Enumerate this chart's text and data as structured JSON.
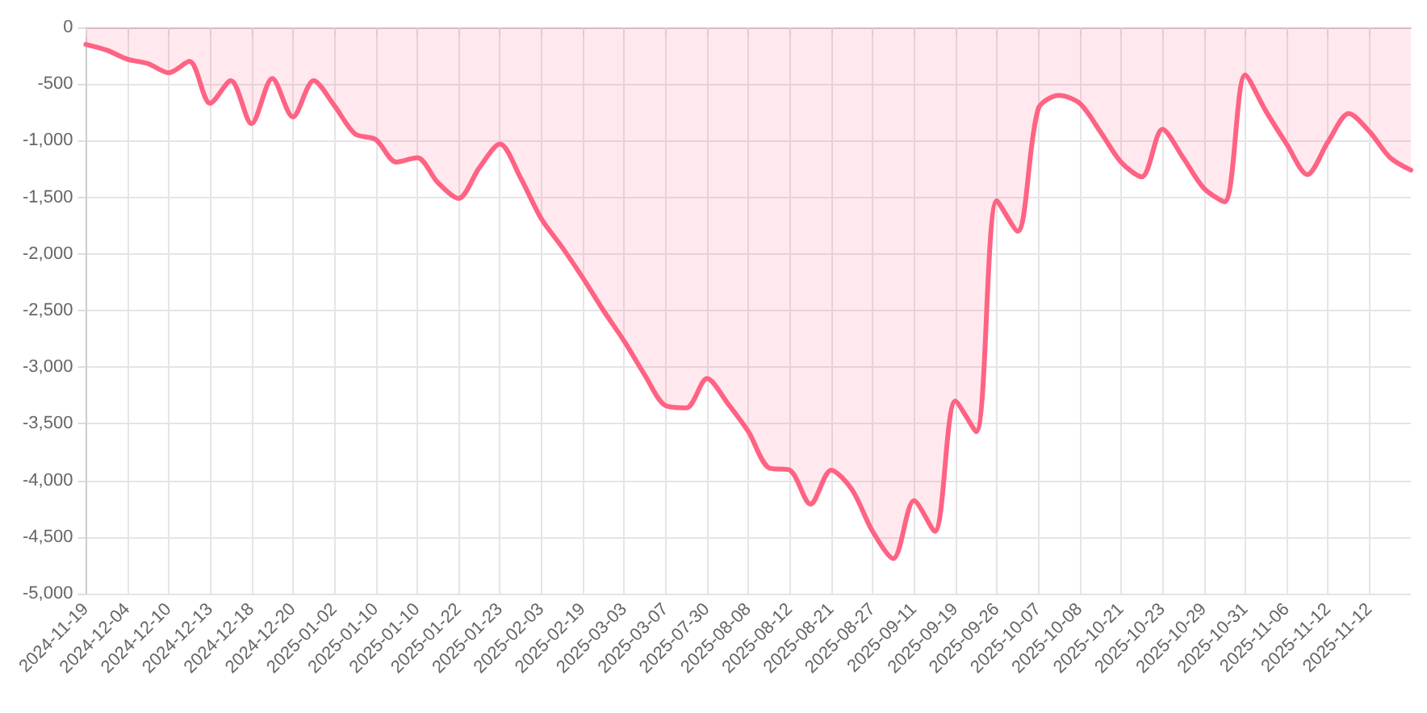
{
  "chart_data": {
    "type": "area",
    "categories": [
      "2024-11-19",
      null,
      "2024-12-04",
      null,
      "2024-12-10",
      null,
      "2024-12-13",
      null,
      "2024-12-18",
      null,
      "2024-12-20",
      null,
      "2025-01-02",
      null,
      "2025-01-10",
      null,
      "2025-01-10",
      null,
      "2025-01-22",
      null,
      "2025-01-23",
      null,
      "2025-02-03",
      null,
      "2025-02-19",
      null,
      "2025-03-03",
      null,
      "2025-03-07",
      null,
      "2025-07-30",
      null,
      "2025-08-08",
      null,
      "2025-08-12",
      null,
      "2025-08-21",
      null,
      "2025-08-27",
      null,
      "2025-09-11",
      null,
      "2025-09-19",
      null,
      "2025-09-26",
      null,
      "2025-10-07",
      null,
      "2025-10-08",
      null,
      "2025-10-21",
      null,
      "2025-10-23",
      null,
      "2025-10-29",
      null,
      "2025-10-31",
      null,
      "2025-11-06",
      null,
      "2025-11-12",
      null,
      "2025-11-12",
      null,
      null
    ],
    "series": [
      {
        "color": "#ff6384",
        "values": [
          -150,
          -200,
          -280,
          -320,
          -400,
          -300,
          -670,
          -470,
          -850,
          -450,
          -790,
          -470,
          -690,
          -940,
          -990,
          -1190,
          -1150,
          -1370,
          -1510,
          -1240,
          -1030,
          -1330,
          -1690,
          -1940,
          -2210,
          -2500,
          -2770,
          -3070,
          -3340,
          -3360,
          -3100,
          -3320,
          -3570,
          -3890,
          -3910,
          -4210,
          -3910,
          -4080,
          -4450,
          -4690,
          -4180,
          -4450,
          -3300,
          -3570,
          -1530,
          -1800,
          -720,
          -600,
          -670,
          -920,
          -1190,
          -1320,
          -900,
          -1150,
          -1420,
          -1540,
          -420,
          -740,
          -1030,
          -1300,
          -1010,
          -760,
          -920,
          -1150,
          -1260
        ]
      }
    ],
    "ylim": [
      -5000,
      0
    ],
    "yticks": [
      {
        "value": -5000,
        "label": "-5,000"
      },
      {
        "value": -4500,
        "label": "-4,500"
      },
      {
        "value": -4000,
        "label": "-4,000"
      },
      {
        "value": -3500,
        "label": "-3,500"
      },
      {
        "value": -3000,
        "label": "-3,000"
      },
      {
        "value": -2500,
        "label": "-2,500"
      },
      {
        "value": -2000,
        "label": "-2,000"
      },
      {
        "value": -1500,
        "label": "-1,500"
      },
      {
        "value": -1000,
        "label": "-1,000"
      },
      {
        "value": -500,
        "label": "-500"
      },
      0
    ],
    "grid": true,
    "marker": "none",
    "line_style": "solid"
  }
}
